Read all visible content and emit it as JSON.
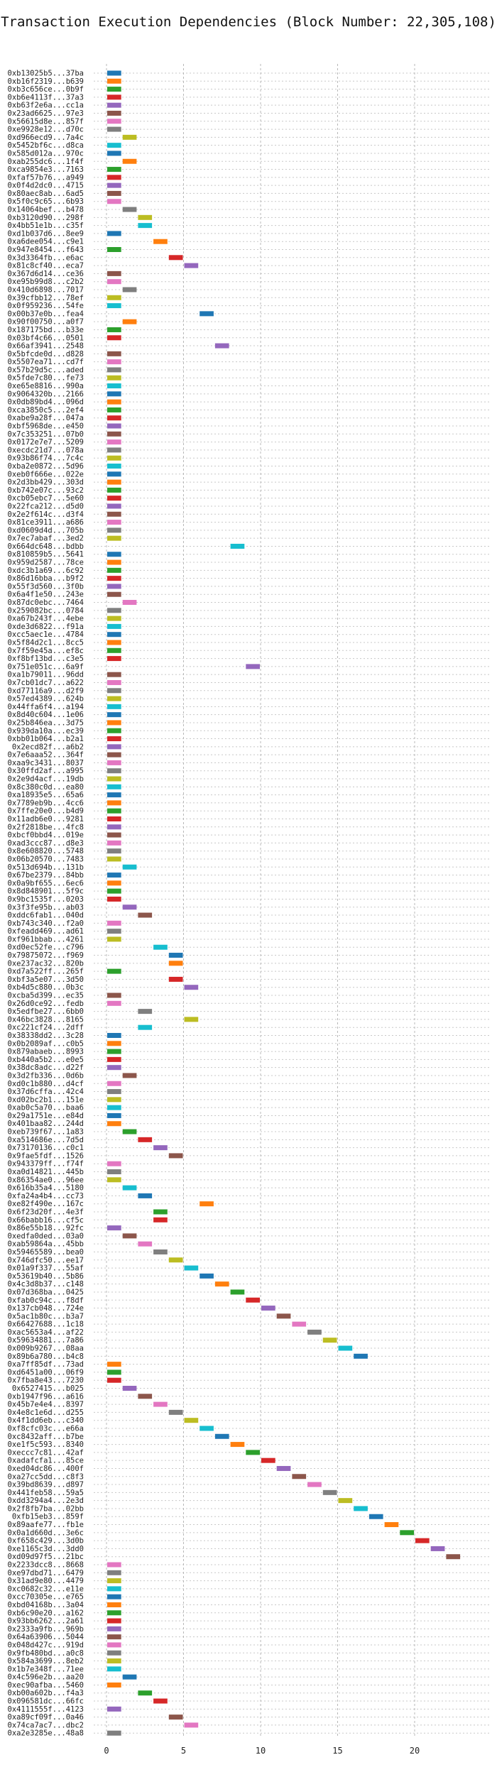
{
  "chart_data": {
    "type": "bar",
    "orientation": "horizontal",
    "title": "Transaction Execution Dependencies (Block Number: 22,305,108)",
    "xlabel": "",
    "ylabel": "",
    "xlim": [
      -1,
      24.5
    ],
    "xticks": [
      0,
      5,
      10,
      15,
      20
    ],
    "grid": true,
    "palette": [
      "#1f77b4",
      "#ff7f0e",
      "#2ca02c",
      "#d62728",
      "#9467bd",
      "#8c564b",
      "#e377c2",
      "#7f7f7f",
      "#bcbd22",
      "#17becf"
    ],
    "transactions": [
      "0xb13025b5...37ba",
      "0xb16f2319...b639",
      "0xb3c656ce...0b9f",
      "0xb6e4113f...37a3",
      "0xb63f2e6a...cc1a",
      "0x23ad6625...97e3",
      "0x56615d8e...857f",
      "0xe9928e12...d70c",
      "0xd966ecd9...7a4c",
      "0x5452bf6c...d8ca",
      "0x585d012a...970c",
      "0xab255dc6...1f4f",
      "0xca9854e3...7163",
      "0xfaf57b76...a949",
      "0x0f4d2dc0...4715",
      "0x80aec8ab...6ad5",
      "0x5f0c9c65...6b93",
      "0x14064bef...b478",
      "0xb3120d90...298f",
      "0x4bb51e1b...c35f",
      "0xd1b037d6...8ee9",
      "0xa6dee054...c9e1",
      "0x947e8454...f643",
      "0x3d3364fb...e6ac",
      "0x81c8cf40...eca7",
      "0x367d6d14...ce36",
      "0xe95b99d8...c2b2",
      "0x410d6898...7017",
      "0x39cfbb12...78ef",
      "0x0f959236...54fe",
      "0x00b37e0b...fea4",
      "0x90f00750...a0f7",
      "0x187175bd...b33e",
      "0x03bf4c66...0501",
      "0x66af3941...2548",
      "0x5bfcde0d...d828",
      "0x5507ea71...cd7f",
      "0x57b29d5c...aded",
      "0x5fde7c80...fe73",
      "0xe65e8816...990a",
      "0x9064320b...2166",
      "0x0db89bd4...096d",
      "0xca3850c5...2ef4",
      "0xabe9a28f...047a",
      "0xbf5968de...e450",
      "0x7c353251...07b0",
      "0x0172e7e7...5209",
      "0xecdc21d7...078a",
      "0x93b86f74...7c4c",
      "0xba2e0872...5d96",
      "0xeb0f666e...022e",
      "0x2d3bb429...303d",
      "0xb742e07c...93c2",
      "0xcb05ebc7...5e60",
      "0x22fca212...d5d0",
      "0x2e2f614c...d3f4",
      "0x81ce3911...a686",
      "0xd0609d4d...705b",
      "0x7ec7abaf...3ed2",
      "0x664dc648...bdbb",
      "0x810859b5...5641",
      "0x959d2587...78ce",
      "0xdc3b1a69...6c92",
      "0x86d16bba...b9f2",
      "0x55f3d560...3f0b",
      "0x6a4f1e50...243e",
      "0x87dc0ebc...7464",
      "0x259082bc...0784",
      "0xa67b243f...4ebe",
      "0xde3d6822...f91a",
      "0xcc5aec1e...4784",
      "0x5f84d2c1...8cc5",
      "0x7f59e45a...ef8c",
      "0xf8bf13bd...c3e5",
      "0x751e051c...6a9f",
      "0xa1b79011...96dd",
      "0x7cb01dc7...a622",
      "0xd77116a9...d2f9",
      "0x57ed4389...624b",
      "0x44ffa6f4...a194",
      "0x8d40c604...1e06",
      "0x25b846ea...3d75",
      "0x939da10a...ec39",
      "0xbb01b064...b2a1",
      "0x2ecd82f...a6b2",
      "0x7e6aaa52...364f",
      "0xaa9c3431...8037",
      "0x30ffd2af...a995",
      "0x2e9d4acf...19db",
      "0x8c380c0d...ea80",
      "0xa18935e5...65a6",
      "0x7789eb9b...4cc6",
      "0x7ffe20e0...b4d9",
      "0x11adb6e0...9281",
      "0x2f2818be...4fc8",
      "0xbcf0bbd4...019e",
      "0xad3ccc87...d8e3",
      "0x8e608820...5748",
      "0x06b20570...7483",
      "0x513d694b...131b",
      "0x67be2379...84bb",
      "0x0a9bf655...6ec6",
      "0x8d848901...5f9c",
      "0x9bc1535f...0203",
      "0x3f3fe95b...ab03",
      "0xddc6fab1...040d",
      "0xb743c340...f2a0",
      "0xfeadd469...ad61",
      "0xf961bbab...4261",
      "0xd0ec52fe...c796",
      "0x79875072...f969",
      "0xe237ac32...820b",
      "0xd7a522ff...265f",
      "0xbf3a5e07...3d50",
      "0xb4d5c880...0b3c",
      "0xcba5d399...ec35",
      "0x26d0ce92...fedb",
      "0x5edfbe27...6bb0",
      "0x46bc3828...8165",
      "0xc221cf24...2dff",
      "0x38338dd2...3c28",
      "0x0b2089af...c0b5",
      "0x879abaeb...8993",
      "0xb440a5b2...e0e5",
      "0x38dc8adc...d22f",
      "0x3d2fb336...0d6b",
      "0xd0c1b880...d4cf",
      "0x37d6cffa...42c4",
      "0xd02bc2b1...151e",
      "0xab0c5a70...baa6",
      "0x29a1751e...e84d",
      "0x401baa82...244d",
      "0xeb739f67...1a83",
      "0xa514686e...7d5d",
      "0x73170136...c0c1",
      "0x9fae5fdf...1526",
      "0x943379ff...f74f",
      "0xa0d14821...445b",
      "0x86354ae0...96ee",
      "0x616b35a4...5180",
      "0xfa24a4b4...cc73",
      "0xe82f490e...167c",
      "0x6f23d20f...4e3f",
      "0x66babb16...cf5c",
      "0x86e55b18...92fc",
      "0xedfa0ded...03a0",
      "0xab59864a...45bb",
      "0x59465589...bea0",
      "0x746dfc50...ee17",
      "0x01a9f337...55af",
      "0x53619b40...5b86",
      "0x4c3d8b37...c148",
      "0x07d368ba...0425",
      "0xfab0c94c...f8df",
      "0x137cb048...724e",
      "0x5ac1b80c...b3a7",
      "0x66427688...1c18",
      "0xac5653a4...af22",
      "0x59634881...7a86",
      "0x009b9267...08aa",
      "0x89b6a780...b4c8",
      "0xa7ff85df...73ad",
      "0xd6451a00...06f9",
      "0x7fba8e43...7230",
      "0x6527415...b025",
      "0xb1947f96...a616",
      "0x45b7e4e4...8397",
      "0x4e8c1e6d...d255",
      "0x4f1dd6eb...c340",
      "0xf8cfc03c...e66a",
      "0xc8432aff...b7be",
      "0xe1f5c593...8340",
      "0xeccc7c81...42af",
      "0xadafcfa1...85ce",
      "0xed04dc86...400f",
      "0xa27cc5dd...c8f3",
      "0x39bd8639...d897",
      "0x441feb58...59a5",
      "0xdd3294a4...2e3d",
      "0x2f8fb7ba...02bb",
      "0xfb15eb3...859f",
      "0x89aafe77...fb1e",
      "0x0a1d660d...3e6c",
      "0xf658c429...3d0b",
      "0xe1165c3d...3dd0",
      "0xd09d97f5...21bc",
      "0x2233dcc8...8668",
      "0xe97dbd71...6479",
      "0x31ad9e80...4479",
      "0xc0682c32...e11e",
      "0xcc70305e...e765",
      "0xbd04168b...3a04",
      "0xb6c90e20...a162",
      "0x93bb6262...2a61",
      "0x2333a9fb...969b",
      "0x64a63906...5044",
      "0x048d427c...919d",
      "0x9fb480bd...a0c8",
      "0x584a3699...8eb2",
      "0x1b7e348f...71ee",
      "0x4c596e2b...aa20",
      "0xec90afba...5460",
      "0xb00a602b...f4a3",
      "0x096581dc...66fc",
      "0x4111555f...4123",
      "0xa89cf09f...0a46",
      "0x74ca7ac7...dbc2",
      "0xa2e3285e...48a8"
    ],
    "series": [
      {
        "start": [
          0,
          0,
          0,
          0,
          0,
          0,
          0,
          0,
          1,
          0,
          0,
          1,
          0,
          0,
          0,
          0,
          0,
          1,
          2,
          2,
          0,
          3,
          0,
          4,
          5,
          0,
          0,
          1,
          0,
          0,
          6,
          1,
          0,
          0,
          7,
          0,
          0,
          0,
          0,
          0,
          0,
          0,
          0,
          0,
          0,
          0,
          0,
          0,
          0,
          0,
          0,
          0,
          0,
          0,
          0,
          0,
          0,
          0,
          0,
          8,
          0,
          0,
          0,
          0,
          0,
          0,
          1,
          0,
          0,
          0,
          0,
          0,
          0,
          0,
          9,
          0,
          0,
          0,
          0,
          0,
          0,
          0,
          0,
          0,
          0,
          0,
          0,
          0,
          0,
          0,
          0,
          0,
          0,
          0,
          0,
          0,
          0,
          0,
          0,
          1,
          0,
          0,
          0,
          0,
          1,
          2,
          0,
          0,
          0,
          3,
          4,
          4,
          0,
          4,
          5,
          0,
          0,
          2,
          5,
          2,
          0,
          0,
          0,
          0,
          0,
          1,
          0,
          0,
          0,
          0,
          0,
          0,
          1,
          2,
          3,
          4,
          0,
          0,
          0,
          1,
          2,
          6,
          3,
          3,
          0,
          1,
          2,
          3,
          4,
          5,
          6,
          7,
          8,
          9,
          10,
          11,
          12,
          13,
          14,
          15,
          16,
          0,
          0,
          0,
          1,
          2,
          3,
          4,
          5,
          6,
          7,
          8,
          9,
          10,
          11,
          12,
          13,
          14,
          15,
          16,
          17,
          18,
          19,
          20,
          21,
          22,
          0,
          0,
          0,
          0,
          0,
          0,
          0,
          0,
          0,
          0,
          0,
          0,
          0,
          0,
          1,
          0,
          2,
          3,
          0,
          4,
          5,
          0
        ],
        "end": [
          1,
          1,
          1,
          1,
          1,
          1,
          1,
          1,
          2,
          1,
          1,
          2,
          1,
          1,
          1,
          1,
          1,
          2,
          3,
          3,
          1,
          4,
          1,
          5,
          6,
          1,
          1,
          2,
          1,
          1,
          7,
          2,
          1,
          1,
          8,
          1,
          1,
          1,
          1,
          1,
          1,
          1,
          1,
          1,
          1,
          1,
          1,
          1,
          1,
          1,
          1,
          1,
          1,
          1,
          1,
          1,
          1,
          1,
          1,
          9,
          1,
          1,
          1,
          1,
          1,
          1,
          2,
          1,
          1,
          1,
          1,
          1,
          1,
          1,
          10,
          1,
          1,
          1,
          1,
          1,
          1,
          1,
          1,
          1,
          1,
          1,
          1,
          1,
          1,
          1,
          1,
          1,
          1,
          1,
          1,
          1,
          1,
          1,
          1,
          2,
          1,
          1,
          1,
          1,
          2,
          3,
          1,
          1,
          1,
          4,
          5,
          5,
          1,
          5,
          6,
          1,
          1,
          3,
          6,
          3,
          1,
          1,
          1,
          1,
          1,
          2,
          1,
          1,
          1,
          1,
          1,
          1,
          2,
          3,
          4,
          5,
          1,
          1,
          1,
          2,
          3,
          7,
          4,
          4,
          1,
          2,
          3,
          4,
          5,
          6,
          7,
          8,
          9,
          10,
          11,
          12,
          13,
          14,
          15,
          16,
          17,
          1,
          1,
          1,
          2,
          3,
          4,
          5,
          6,
          7,
          8,
          9,
          10,
          11,
          12,
          13,
          14,
          15,
          16,
          17,
          18,
          19,
          20,
          21,
          22,
          23,
          1,
          1,
          1,
          1,
          1,
          1,
          1,
          1,
          1,
          1,
          1,
          1,
          1,
          1,
          2,
          1,
          3,
          4,
          1,
          5,
          6,
          1
        ]
      }
    ]
  }
}
